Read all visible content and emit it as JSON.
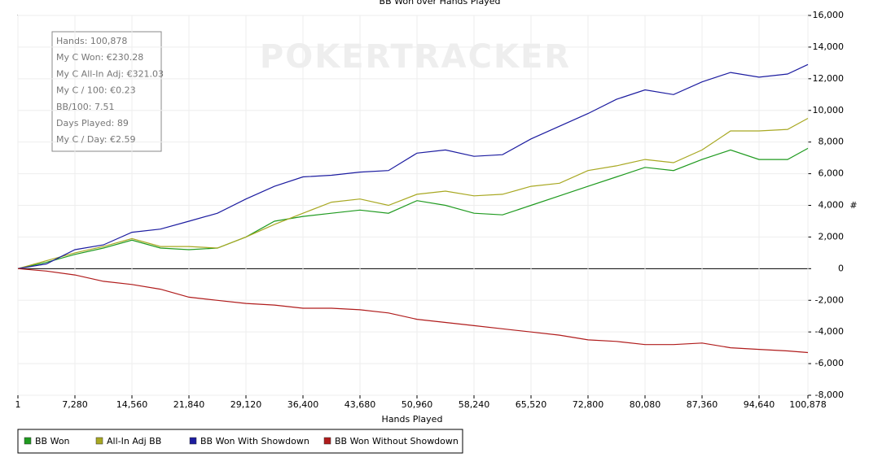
{
  "chart_data": {
    "type": "line",
    "title": "BB Won over Hands Played",
    "x_label": "Hands Played",
    "y_label": "#",
    "watermark": "POKERTRACKER",
    "stats_box": [
      "Hands: 100,878",
      "My C Won: €230.28",
      "My C All-In Adj: €321.03",
      "My C / 100: €0.23",
      "BB/100: 7.51",
      "Days Played: 89",
      "My C / Day: €2.59"
    ],
    "grid": true,
    "legend": "bottom-left",
    "x": [
      1,
      3640,
      7280,
      10920,
      14560,
      18200,
      21840,
      25480,
      29120,
      32760,
      36400,
      40040,
      43680,
      47320,
      50960,
      54600,
      58240,
      61880,
      65520,
      69160,
      72800,
      76440,
      80080,
      83720,
      87360,
      91000,
      94640,
      98280,
      100878
    ],
    "series": [
      {
        "name": "BB Won",
        "color": "#1f9a1f",
        "values": [
          0,
          400,
          900,
          1300,
          1800,
          1300,
          1200,
          1300,
          2000,
          3000,
          3300,
          3500,
          3700,
          3500,
          4300,
          4000,
          3500,
          3400,
          4000,
          4600,
          5200,
          5800,
          6400,
          6200,
          6900,
          7500,
          6900,
          6900,
          7600
        ]
      },
      {
        "name": "All-In Adj BB",
        "color": "#a8a822",
        "values": [
          0,
          500,
          1000,
          1400,
          1900,
          1400,
          1400,
          1300,
          2000,
          2800,
          3500,
          4200,
          4400,
          4000,
          4700,
          4900,
          4600,
          4700,
          5200,
          5400,
          6200,
          6500,
          6900,
          6700,
          7500,
          8700,
          8700,
          8800,
          9500
        ]
      },
      {
        "name": "BB Won With Showdown",
        "color": "#1c1ca0",
        "values": [
          0,
          300,
          1200,
          1500,
          2300,
          2500,
          3000,
          3500,
          4400,
          5200,
          5800,
          5900,
          6100,
          6200,
          7300,
          7500,
          7100,
          7200,
          8200,
          9000,
          9800,
          10700,
          11300,
          11000,
          11800,
          12400,
          12100,
          12300,
          12900
        ]
      },
      {
        "name": "BB Won Without Showdown",
        "color": "#b01c1c",
        "values": [
          0,
          -150,
          -400,
          -800,
          -1000,
          -1300,
          -1800,
          -2000,
          -2200,
          -2300,
          -2500,
          -2500,
          -2600,
          -2800,
          -3200,
          -3400,
          -3600,
          -3800,
          -4000,
          -4200,
          -4500,
          -4600,
          -4800,
          -4800,
          -4700,
          -5000,
          -5100,
          -5200,
          -5300
        ]
      }
    ],
    "xlim": [
      1,
      100878
    ],
    "xticks": [
      1,
      {
        "value": 7280,
        "label": "7,280"
      },
      {
        "value": 14560,
        "label": "14,560"
      },
      {
        "value": 21840,
        "label": "21,840"
      },
      {
        "value": 29120,
        "label": "29,120"
      },
      {
        "value": 36400,
        "label": "36,400"
      },
      {
        "value": 43680,
        "label": "43,680"
      },
      {
        "value": 50960,
        "label": "50,960"
      },
      {
        "value": 58240,
        "label": "58,240"
      },
      {
        "value": 65520,
        "label": "65,520"
      },
      {
        "value": 72800,
        "label": "72,800"
      },
      {
        "value": 80080,
        "label": "80,080"
      },
      {
        "value": 87360,
        "label": "87,360"
      },
      {
        "value": 94640,
        "label": "94,640"
      },
      {
        "value": 100878,
        "label": "100,878"
      }
    ],
    "ylim": [
      -8000,
      16000
    ],
    "yticks": [
      {
        "value": -8000,
        "label": "-8,000"
      },
      {
        "value": -6000,
        "label": "-6,000"
      },
      {
        "value": -4000,
        "label": "-4,000"
      },
      {
        "value": -2000,
        "label": "-2,000"
      },
      0,
      {
        "value": 2000,
        "label": "2,000"
      },
      {
        "value": 4000,
        "label": "4,000"
      },
      {
        "value": 6000,
        "label": "6,000"
      },
      {
        "value": 8000,
        "label": "8,000"
      },
      {
        "value": 10000,
        "label": "10,000"
      },
      {
        "value": 12000,
        "label": "12,000"
      },
      {
        "value": 14000,
        "label": "14,000"
      },
      {
        "value": 16000,
        "label": "16,000"
      }
    ]
  }
}
